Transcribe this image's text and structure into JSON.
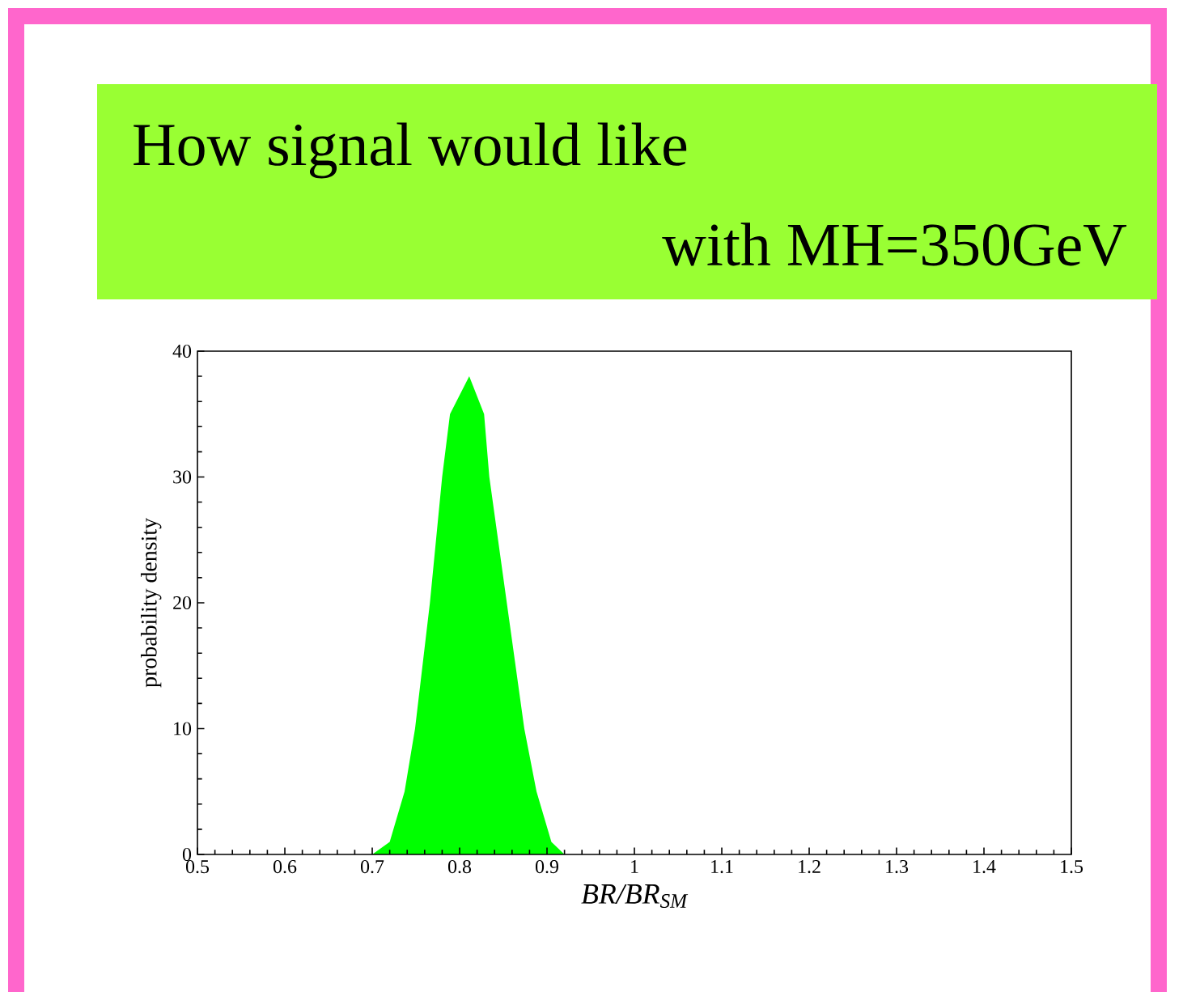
{
  "chart_data": {
    "type": "area",
    "title": "How signal would like",
    "subtitle": "with MH=350GeV",
    "xlabel": "BR/BR$_{SM}$",
    "ylabel": "probability density",
    "x": [
      0.5,
      0.7,
      0.72,
      0.737,
      0.749,
      0.766,
      0.78,
      0.789,
      0.811,
      0.828,
      0.834,
      0.854,
      0.874,
      0.888,
      0.905,
      0.92,
      1.5
    ],
    "values": [
      0,
      0,
      1,
      5,
      10,
      20,
      30,
      35,
      38,
      35,
      30,
      20,
      10,
      5,
      1,
      0,
      0
    ],
    "color": "#00ff00",
    "xlim": [
      0.5,
      1.5
    ],
    "xticks": [
      0.5,
      0.6,
      0.7,
      0.8,
      0.9,
      1,
      1.1,
      1.2,
      1.3,
      1.4,
      1.5
    ],
    "ylim": [
      0,
      40
    ],
    "yticks": [
      0,
      10,
      20,
      30,
      40
    ]
  }
}
